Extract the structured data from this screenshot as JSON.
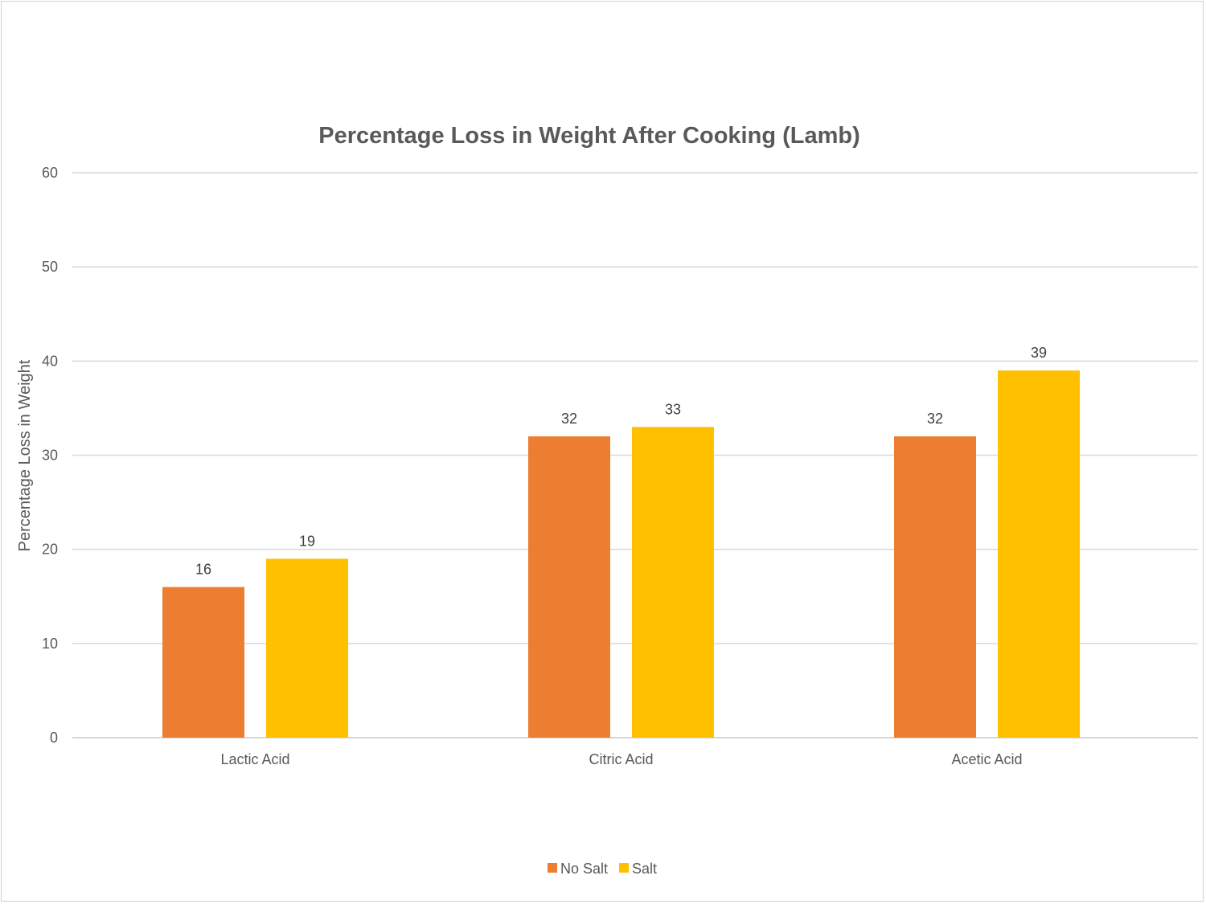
{
  "chart_data": {
    "type": "bar",
    "title": "Percentage Loss in Weight After Cooking (Lamb)",
    "xlabel": "",
    "ylabel": "Percentage Loss in Weight",
    "categories": [
      "Lactic Acid",
      "Citric Acid",
      "Acetic Acid"
    ],
    "series": [
      {
        "name": "No Salt",
        "values": [
          16,
          32,
          32
        ],
        "color": "#ED7D31"
      },
      {
        "name": "Salt",
        "values": [
          19,
          33,
          39
        ],
        "color": "#FFC000"
      }
    ],
    "ylim": [
      0,
      60
    ],
    "yticks": [
      0,
      10,
      20,
      30,
      40,
      50,
      60
    ],
    "grid": true,
    "legend_position": "bottom",
    "data_labels": true
  }
}
